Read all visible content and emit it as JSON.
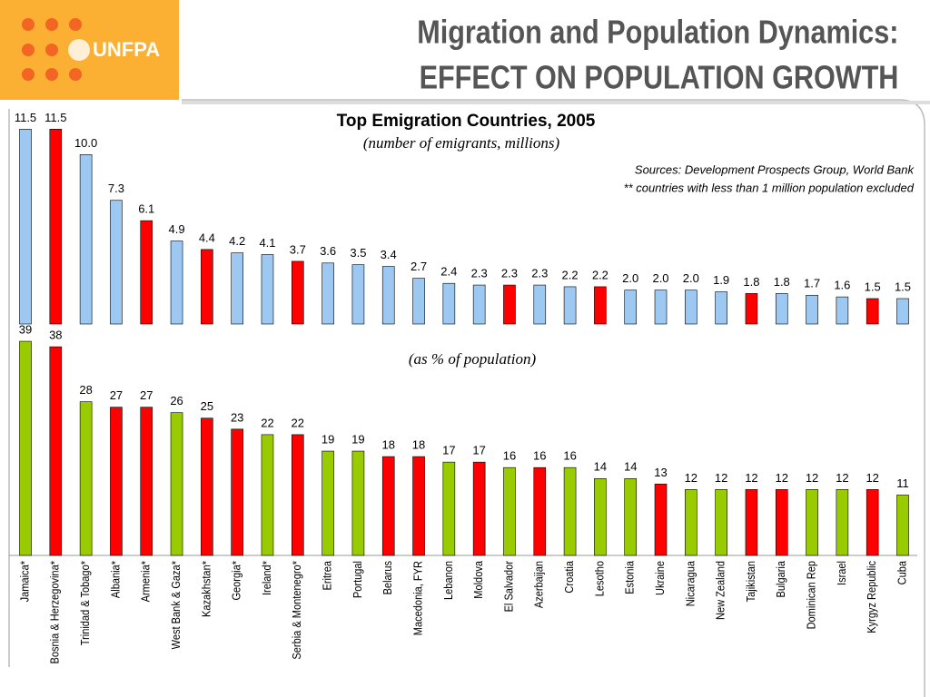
{
  "header": {
    "logo": "UNFPA",
    "title": [
      "Migration and Population Dynamics:",
      "EFFECT ON POPULATION GROWTH"
    ]
  },
  "chart_data": [
    {
      "type": "bar",
      "title": "Top Emigration Countries, 2005",
      "subtitle": "(number of emigrants, millions)",
      "notes": [
        "Sources: Development Prospects Group, World Bank",
        "** countries with less than 1 million population excluded"
      ],
      "values": [
        11.5,
        11.5,
        10.0,
        7.3,
        6.1,
        4.9,
        4.4,
        4.2,
        4.1,
        3.7,
        3.6,
        3.5,
        3.4,
        2.7,
        2.4,
        2.3,
        2.3,
        2.3,
        2.2,
        2.2,
        2.0,
        2.0,
        2.0,
        1.9,
        1.8,
        1.8,
        1.7,
        1.6,
        1.5,
        1.5
      ],
      "value_labels": [
        "11.5",
        "11.5",
        "10.0",
        "7.3",
        "6.1",
        "4.9",
        "4.4",
        "4.2",
        "4.1",
        "3.7",
        "3.6",
        "3.5",
        "3.4",
        "2.7",
        "2.4",
        "2.3",
        "2.3",
        "2.3",
        "2.2",
        "2.2",
        "2.0",
        "2.0",
        "2.0",
        "1.9",
        "1.8",
        "1.8",
        "1.7",
        "1.6",
        "1.5",
        "1.5"
      ],
      "colors": [
        "#9cc8f2",
        "#ff0000",
        "#9cc8f2",
        "#9cc8f2",
        "#ff0000",
        "#9cc8f2",
        "#ff0000",
        "#9cc8f2",
        "#9cc8f2",
        "#ff0000",
        "#9cc8f2",
        "#9cc8f2",
        "#9cc8f2",
        "#9cc8f2",
        "#9cc8f2",
        "#9cc8f2",
        "#ff0000",
        "#9cc8f2",
        "#9cc8f2",
        "#ff0000",
        "#9cc8f2",
        "#9cc8f2",
        "#9cc8f2",
        "#9cc8f2",
        "#ff0000",
        "#9cc8f2",
        "#9cc8f2",
        "#9cc8f2",
        "#ff0000",
        "#9cc8f2"
      ],
      "ylim": [
        0,
        12
      ]
    },
    {
      "type": "bar",
      "subtitle": "(as % of population)",
      "categories": [
        "Jamaica*",
        "Bosnia & Herzegovina*",
        "Trinidad & Tobago*",
        "Albania*",
        "Armenia*",
        "West Bank & Gaza*",
        "Kazakhstan*",
        "Georgia*",
        "Ireland*",
        "Serbia & Montenegro*",
        "Eritrea",
        "Portugal",
        "Belarus",
        "Macedonia, FYR",
        "Lebanon",
        "Moldova",
        "El Salvador",
        "Azerbaijan",
        "Croatia",
        "Lesotho",
        "Estonia",
        "Ukraine",
        "Nicaragua",
        "New Zealand",
        "Tajikistan",
        "Bulgaria",
        "Dominican Rep",
        "Israel",
        "Kyrgyz Republic",
        "Cuba"
      ],
      "values": [
        39,
        38,
        28,
        27,
        27,
        26,
        25,
        23,
        22,
        22,
        19,
        19,
        18,
        18,
        17,
        17,
        16,
        16,
        16,
        14,
        14,
        13,
        12,
        12,
        12,
        12,
        12,
        12,
        12,
        11
      ],
      "colors": [
        "#99cc00",
        "#ff0000",
        "#99cc00",
        "#ff0000",
        "#ff0000",
        "#99cc00",
        "#ff0000",
        "#ff0000",
        "#99cc00",
        "#ff0000",
        "#99cc00",
        "#99cc00",
        "#ff0000",
        "#ff0000",
        "#99cc00",
        "#ff0000",
        "#99cc00",
        "#ff0000",
        "#99cc00",
        "#99cc00",
        "#99cc00",
        "#ff0000",
        "#99cc00",
        "#99cc00",
        "#ff0000",
        "#ff0000",
        "#99cc00",
        "#99cc00",
        "#ff0000",
        "#99cc00"
      ],
      "ylim": [
        0,
        40
      ]
    }
  ]
}
